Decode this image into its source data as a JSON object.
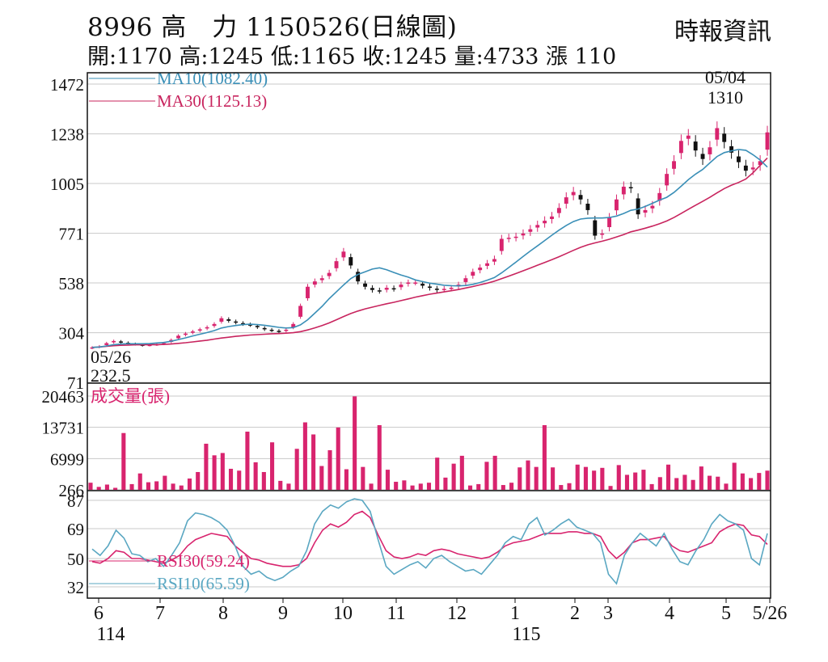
{
  "header": {
    "code": "8996",
    "name": "高　力",
    "date_caption": "1150526(日線圖)",
    "source": "時報資訊",
    "stats": [
      {
        "label": "開",
        "value": "1170"
      },
      {
        "label": "高",
        "value": "1245"
      },
      {
        "label": "低",
        "value": "1165"
      },
      {
        "label": "收",
        "value": "1245"
      },
      {
        "label": "量",
        "value": "4733"
      },
      {
        "label": "漲",
        "value": "110"
      }
    ]
  },
  "colors": {
    "up": "#d8246e",
    "down": "#111111",
    "ma10": "#3a8fb7",
    "ma30": "#c8245e",
    "volume": "#d8246e",
    "rsi30": "#d8246e",
    "rsi10": "#5aa7c2",
    "grid": "#c8c8c8"
  },
  "chart_data": [
    {
      "type": "candlestick",
      "panel": "price",
      "ylim": [
        71,
        1472
      ],
      "yticks": [
        "1472",
        "1238",
        "1005",
        "771",
        "538",
        "304",
        "71"
      ],
      "legend": [
        {
          "name": "MA10(1082.40)",
          "color": "#3a8fb7"
        },
        {
          "name": "MA30(1125.13)",
          "color": "#c8245e"
        }
      ],
      "annotations": [
        {
          "date": "05/26",
          "value": "232.5"
        },
        {
          "date": "05/04",
          "value": "1310"
        }
      ],
      "series": [
        {
          "name": "close_approx",
          "values": [
            235,
            240,
            255,
            265,
            260,
            252,
            250,
            245,
            247,
            250,
            255,
            270,
            290,
            300,
            310,
            320,
            330,
            345,
            372,
            360,
            352,
            345,
            340,
            330,
            320,
            315,
            310,
            318,
            345,
            430,
            520,
            545,
            560,
            585,
            640,
            685,
            620,
            545,
            520,
            505,
            500,
            515,
            510,
            530,
            540,
            540,
            525,
            515,
            505,
            510,
            515,
            530,
            560,
            590,
            610,
            630,
            650,
            745,
            750,
            755,
            770,
            790,
            810,
            830,
            850,
            890,
            940,
            965,
            930,
            880,
            760,
            770,
            845,
            930,
            990,
            985,
            860,
            880,
            900,
            960,
            1050,
            1110,
            1205,
            1230,
            1160,
            1120,
            1175,
            1265,
            1200,
            1150,
            1105,
            1065,
            1080,
            1110,
            1245
          ]
        },
        {
          "name": "MA10",
          "values": [
            235,
            237,
            242,
            248,
            251,
            252,
            252,
            252,
            253,
            256,
            258,
            264,
            272,
            280,
            289,
            297,
            305,
            314,
            326,
            333,
            338,
            342,
            344,
            342,
            339,
            334,
            329,
            326,
            328,
            341,
            365,
            396,
            428,
            464,
            496,
            528,
            558,
            578,
            590,
            603,
            609,
            600,
            587,
            575,
            565,
            552,
            544,
            537,
            532,
            527,
            525,
            524,
            526,
            531,
            540,
            551,
            563,
            585,
            610,
            636,
            662,
            688,
            712,
            737,
            762,
            786,
            808,
            826,
            838,
            842,
            843,
            843,
            845,
            852,
            864,
            879,
            885,
            897,
            912,
            927,
            940,
            963,
            992,
            1023,
            1049,
            1071,
            1102,
            1132,
            1150,
            1158,
            1165,
            1161,
            1140,
            1115,
            1082
          ]
        },
        {
          "name": "MA30",
          "values": [
            235,
            237,
            240,
            243,
            245,
            246,
            247,
            247,
            248,
            248,
            249,
            251,
            254,
            257,
            261,
            265,
            269,
            274,
            279,
            283,
            287,
            290,
            293,
            295,
            297,
            299,
            300,
            302,
            304,
            309,
            317,
            327,
            338,
            350,
            365,
            380,
            394,
            406,
            416,
            424,
            432,
            440,
            447,
            455,
            463,
            471,
            478,
            485,
            490,
            496,
            501,
            507,
            514,
            521,
            529,
            537,
            546,
            558,
            570,
            582,
            595,
            608,
            621,
            634,
            647,
            661,
            676,
            691,
            705,
            717,
            726,
            734,
            743,
            754,
            765,
            778,
            786,
            795,
            805,
            816,
            829,
            845,
            864,
            884,
            903,
            921,
            940,
            961,
            981,
            997,
            1010,
            1026,
            1055,
            1090,
            1125
          ]
        }
      ]
    },
    {
      "type": "bar",
      "panel": "volume",
      "title": "成交量(張)",
      "ylim": [
        266,
        20463
      ],
      "yticks": [
        "20463",
        "13731",
        "6999",
        "266"
      ],
      "values": [
        1800,
        900,
        1400,
        700,
        12500,
        1500,
        3800,
        1900,
        2100,
        3300,
        1600,
        1200,
        2700,
        4100,
        10200,
        7700,
        8200,
        4800,
        4400,
        12800,
        6200,
        4100,
        10500,
        2200,
        1600,
        9100,
        14800,
        12200,
        5400,
        8800,
        13700,
        4700,
        20400,
        5200,
        1600,
        14200,
        4600,
        2000,
        2300,
        1200,
        1600,
        1800,
        7200,
        2900,
        5900,
        7600,
        1200,
        1500,
        6300,
        7600,
        1300,
        1800,
        5100,
        6600,
        5200,
        14200,
        5100,
        1300,
        1700,
        5700,
        5200,
        4400,
        5000,
        1100,
        5600,
        3500,
        4000,
        4600,
        1500,
        3000,
        5700,
        2800,
        3500,
        2400,
        5300,
        3300,
        3100,
        1600,
        6100,
        3800,
        2800,
        3900,
        4400
      ]
    },
    {
      "type": "line",
      "panel": "rsi",
      "ylim": [
        32,
        87
      ],
      "yticks": [
        "87",
        "69",
        "50",
        "32"
      ],
      "series": [
        {
          "name": "RSI30(59.24)",
          "color": "#d8246e",
          "values": [
            48,
            47,
            50,
            55,
            54,
            50,
            50,
            49,
            48,
            47,
            49,
            52,
            58,
            62,
            64,
            66,
            65,
            64,
            58,
            54,
            50,
            49,
            47,
            46,
            45,
            45,
            46,
            50,
            60,
            68,
            72,
            70,
            73,
            78,
            80,
            76,
            65,
            55,
            51,
            50,
            51,
            53,
            52,
            55,
            56,
            55,
            53,
            52,
            51,
            50,
            51,
            54,
            58,
            60,
            61,
            62,
            64,
            66,
            66,
            66,
            67,
            67,
            66,
            66,
            64,
            55,
            50,
            54,
            60,
            62,
            62,
            63,
            64,
            58,
            55,
            54,
            56,
            58,
            60,
            67,
            70,
            72,
            71,
            65,
            64,
            59
          ]
        },
        {
          "name": "RSI10(65.59)",
          "color": "#5aa7c2",
          "values": [
            56,
            52,
            58,
            68,
            63,
            53,
            52,
            48,
            50,
            45,
            52,
            60,
            74,
            79,
            78,
            76,
            73,
            68,
            58,
            45,
            40,
            42,
            38,
            36,
            38,
            42,
            45,
            55,
            72,
            80,
            84,
            82,
            86,
            88,
            87,
            80,
            62,
            45,
            40,
            43,
            46,
            48,
            44,
            50,
            52,
            48,
            45,
            42,
            43,
            40,
            46,
            52,
            60,
            64,
            62,
            72,
            76,
            65,
            68,
            72,
            75,
            70,
            68,
            66,
            60,
            40,
            34,
            52,
            60,
            66,
            62,
            58,
            66,
            56,
            48,
            46,
            55,
            62,
            72,
            78,
            74,
            72,
            68,
            50,
            46,
            66
          ]
        }
      ]
    }
  ],
  "x_axis": {
    "labels": [
      "6",
      "7",
      "8",
      "9",
      "10",
      "11",
      "12",
      "1",
      "2",
      "3",
      "4",
      "5",
      "5/26"
    ],
    "year_labels": [
      "114",
      "115"
    ]
  }
}
